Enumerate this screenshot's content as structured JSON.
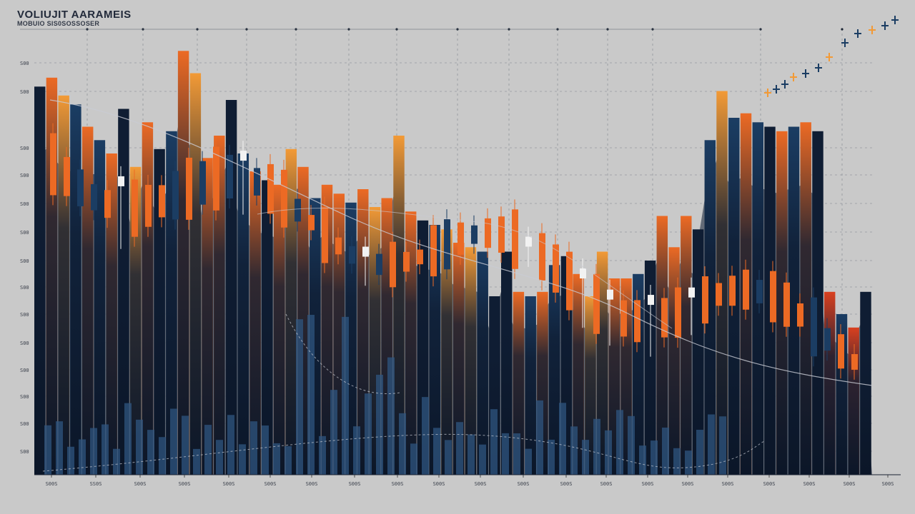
{
  "title": "VOLIUJIT AARAMEIS",
  "subtitle": "MOBUIO SIS0SOSSOSER",
  "colors": {
    "background": "#c9c9c9",
    "navy": "#0f1d33",
    "blue": "#1b3d63",
    "orange": "#ec6a24",
    "amber": "#f29a36",
    "red": "#d9401f",
    "grid": "#4a5566"
  },
  "chart_data": {
    "type": "bar",
    "xlabel": "",
    "ylabel": "",
    "ylim": [
      0,
      100
    ],
    "grid": true,
    "yticks": [
      "S00",
      "S00",
      "S00",
      "S00",
      "S00",
      "S00",
      "S00",
      "S00",
      "S00",
      "S00",
      "S00",
      "S00",
      "S00",
      "S00",
      "S00",
      "S00"
    ],
    "xticks": [
      "S00S",
      "SS0S",
      "S00S",
      "S00S",
      "S00S",
      "S00S",
      "S00S",
      "S00S",
      "S00S",
      "S00S",
      "S00S",
      "S00S",
      "S00S",
      "S00S",
      "S00S",
      "S00S",
      "S00S",
      "S00S",
      "S00S",
      "S00S",
      "S00S",
      "S00S"
    ],
    "series": [
      {
        "values": [
          {
            "v": 87,
            "c": "navy"
          },
          {
            "v": 89,
            "c": "orange"
          },
          {
            "v": 85,
            "c": "amber"
          },
          {
            "v": 83,
            "c": "blue"
          },
          {
            "v": 78,
            "c": "orange"
          },
          {
            "v": 75,
            "c": "blue"
          },
          {
            "v": 72,
            "c": "orange"
          },
          {
            "v": 82,
            "c": "navy"
          },
          {
            "v": 69,
            "c": "amber"
          },
          {
            "v": 79,
            "c": "orange"
          },
          {
            "v": 73,
            "c": "navy"
          },
          {
            "v": 77,
            "c": "blue"
          },
          {
            "v": 95,
            "c": "orange"
          },
          {
            "v": 90,
            "c": "amber"
          },
          {
            "v": 71,
            "c": "orange"
          },
          {
            "v": 76,
            "c": "orange"
          },
          {
            "v": 84,
            "c": "navy"
          },
          {
            "v": 72,
            "c": "blue"
          },
          {
            "v": 68,
            "c": "orange"
          },
          {
            "v": 66,
            "c": "navy"
          },
          {
            "v": 65,
            "c": "orange"
          },
          {
            "v": 73,
            "c": "amber"
          },
          {
            "v": 69,
            "c": "orange"
          },
          {
            "v": 62,
            "c": "blue"
          },
          {
            "v": 65,
            "c": "orange"
          },
          {
            "v": 63,
            "c": "orange"
          },
          {
            "v": 61,
            "c": "blue"
          },
          {
            "v": 64,
            "c": "orange"
          },
          {
            "v": 60,
            "c": "amber"
          },
          {
            "v": 62,
            "c": "orange"
          },
          {
            "v": 76,
            "c": "amber"
          },
          {
            "v": 59,
            "c": "orange"
          },
          {
            "v": 57,
            "c": "navy"
          },
          {
            "v": 56,
            "c": "blue"
          },
          {
            "v": 55,
            "c": "amber"
          },
          {
            "v": 52,
            "c": "orange"
          },
          {
            "v": 51,
            "c": "amber"
          },
          {
            "v": 50,
            "c": "blue"
          },
          {
            "v": 40,
            "c": "navy"
          },
          {
            "v": 50,
            "c": "navy"
          },
          {
            "v": 41,
            "c": "orange"
          },
          {
            "v": 40,
            "c": "blue"
          },
          {
            "v": 41,
            "c": "orange"
          },
          {
            "v": 47,
            "c": "blue"
          },
          {
            "v": 49,
            "c": "navy"
          },
          {
            "v": 45,
            "c": "orange"
          },
          {
            "v": 40,
            "c": "amber"
          },
          {
            "v": 50,
            "c": "amber"
          },
          {
            "v": 44,
            "c": "orange"
          },
          {
            "v": 44,
            "c": "orange"
          },
          {
            "v": 45,
            "c": "blue"
          },
          {
            "v": 48,
            "c": "navy"
          },
          {
            "v": 58,
            "c": "orange"
          },
          {
            "v": 51,
            "c": "orange"
          },
          {
            "v": 58,
            "c": "orange"
          },
          {
            "v": 55,
            "c": "navy"
          },
          {
            "v": 75,
            "c": "blue"
          },
          {
            "v": 86,
            "c": "amber"
          },
          {
            "v": 80,
            "c": "blue"
          },
          {
            "v": 81,
            "c": "orange"
          },
          {
            "v": 79,
            "c": "blue"
          },
          {
            "v": 78,
            "c": "navy"
          },
          {
            "v": 77,
            "c": "orange"
          },
          {
            "v": 78,
            "c": "blue"
          },
          {
            "v": 79,
            "c": "orange"
          },
          {
            "v": 77,
            "c": "navy"
          },
          {
            "v": 41,
            "c": "red"
          },
          {
            "v": 36,
            "c": "blue"
          },
          {
            "v": 33,
            "c": "red"
          },
          {
            "v": 41,
            "c": "navy"
          }
        ]
      }
    ]
  }
}
